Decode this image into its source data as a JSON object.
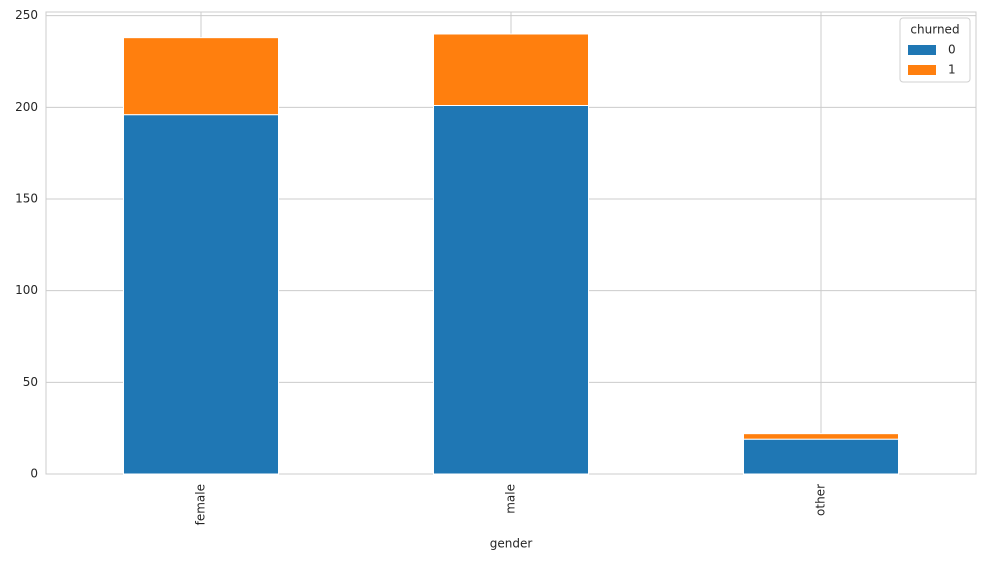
{
  "chart_data": {
    "type": "stacked_bar",
    "xlabel": "gender",
    "categories": [
      "female",
      "male",
      "other"
    ],
    "series": [
      {
        "name": "0",
        "color": "#1f77b4",
        "values": [
          196,
          201,
          19
        ]
      },
      {
        "name": "1",
        "color": "#ff7f0e",
        "values": [
          42,
          39,
          3
        ]
      }
    ],
    "legend_title": "churned",
    "legend_position": "upper right",
    "ylim": [
      0,
      252
    ],
    "yticks": [
      0,
      50,
      100,
      150,
      200,
      250
    ],
    "grid": true
  }
}
